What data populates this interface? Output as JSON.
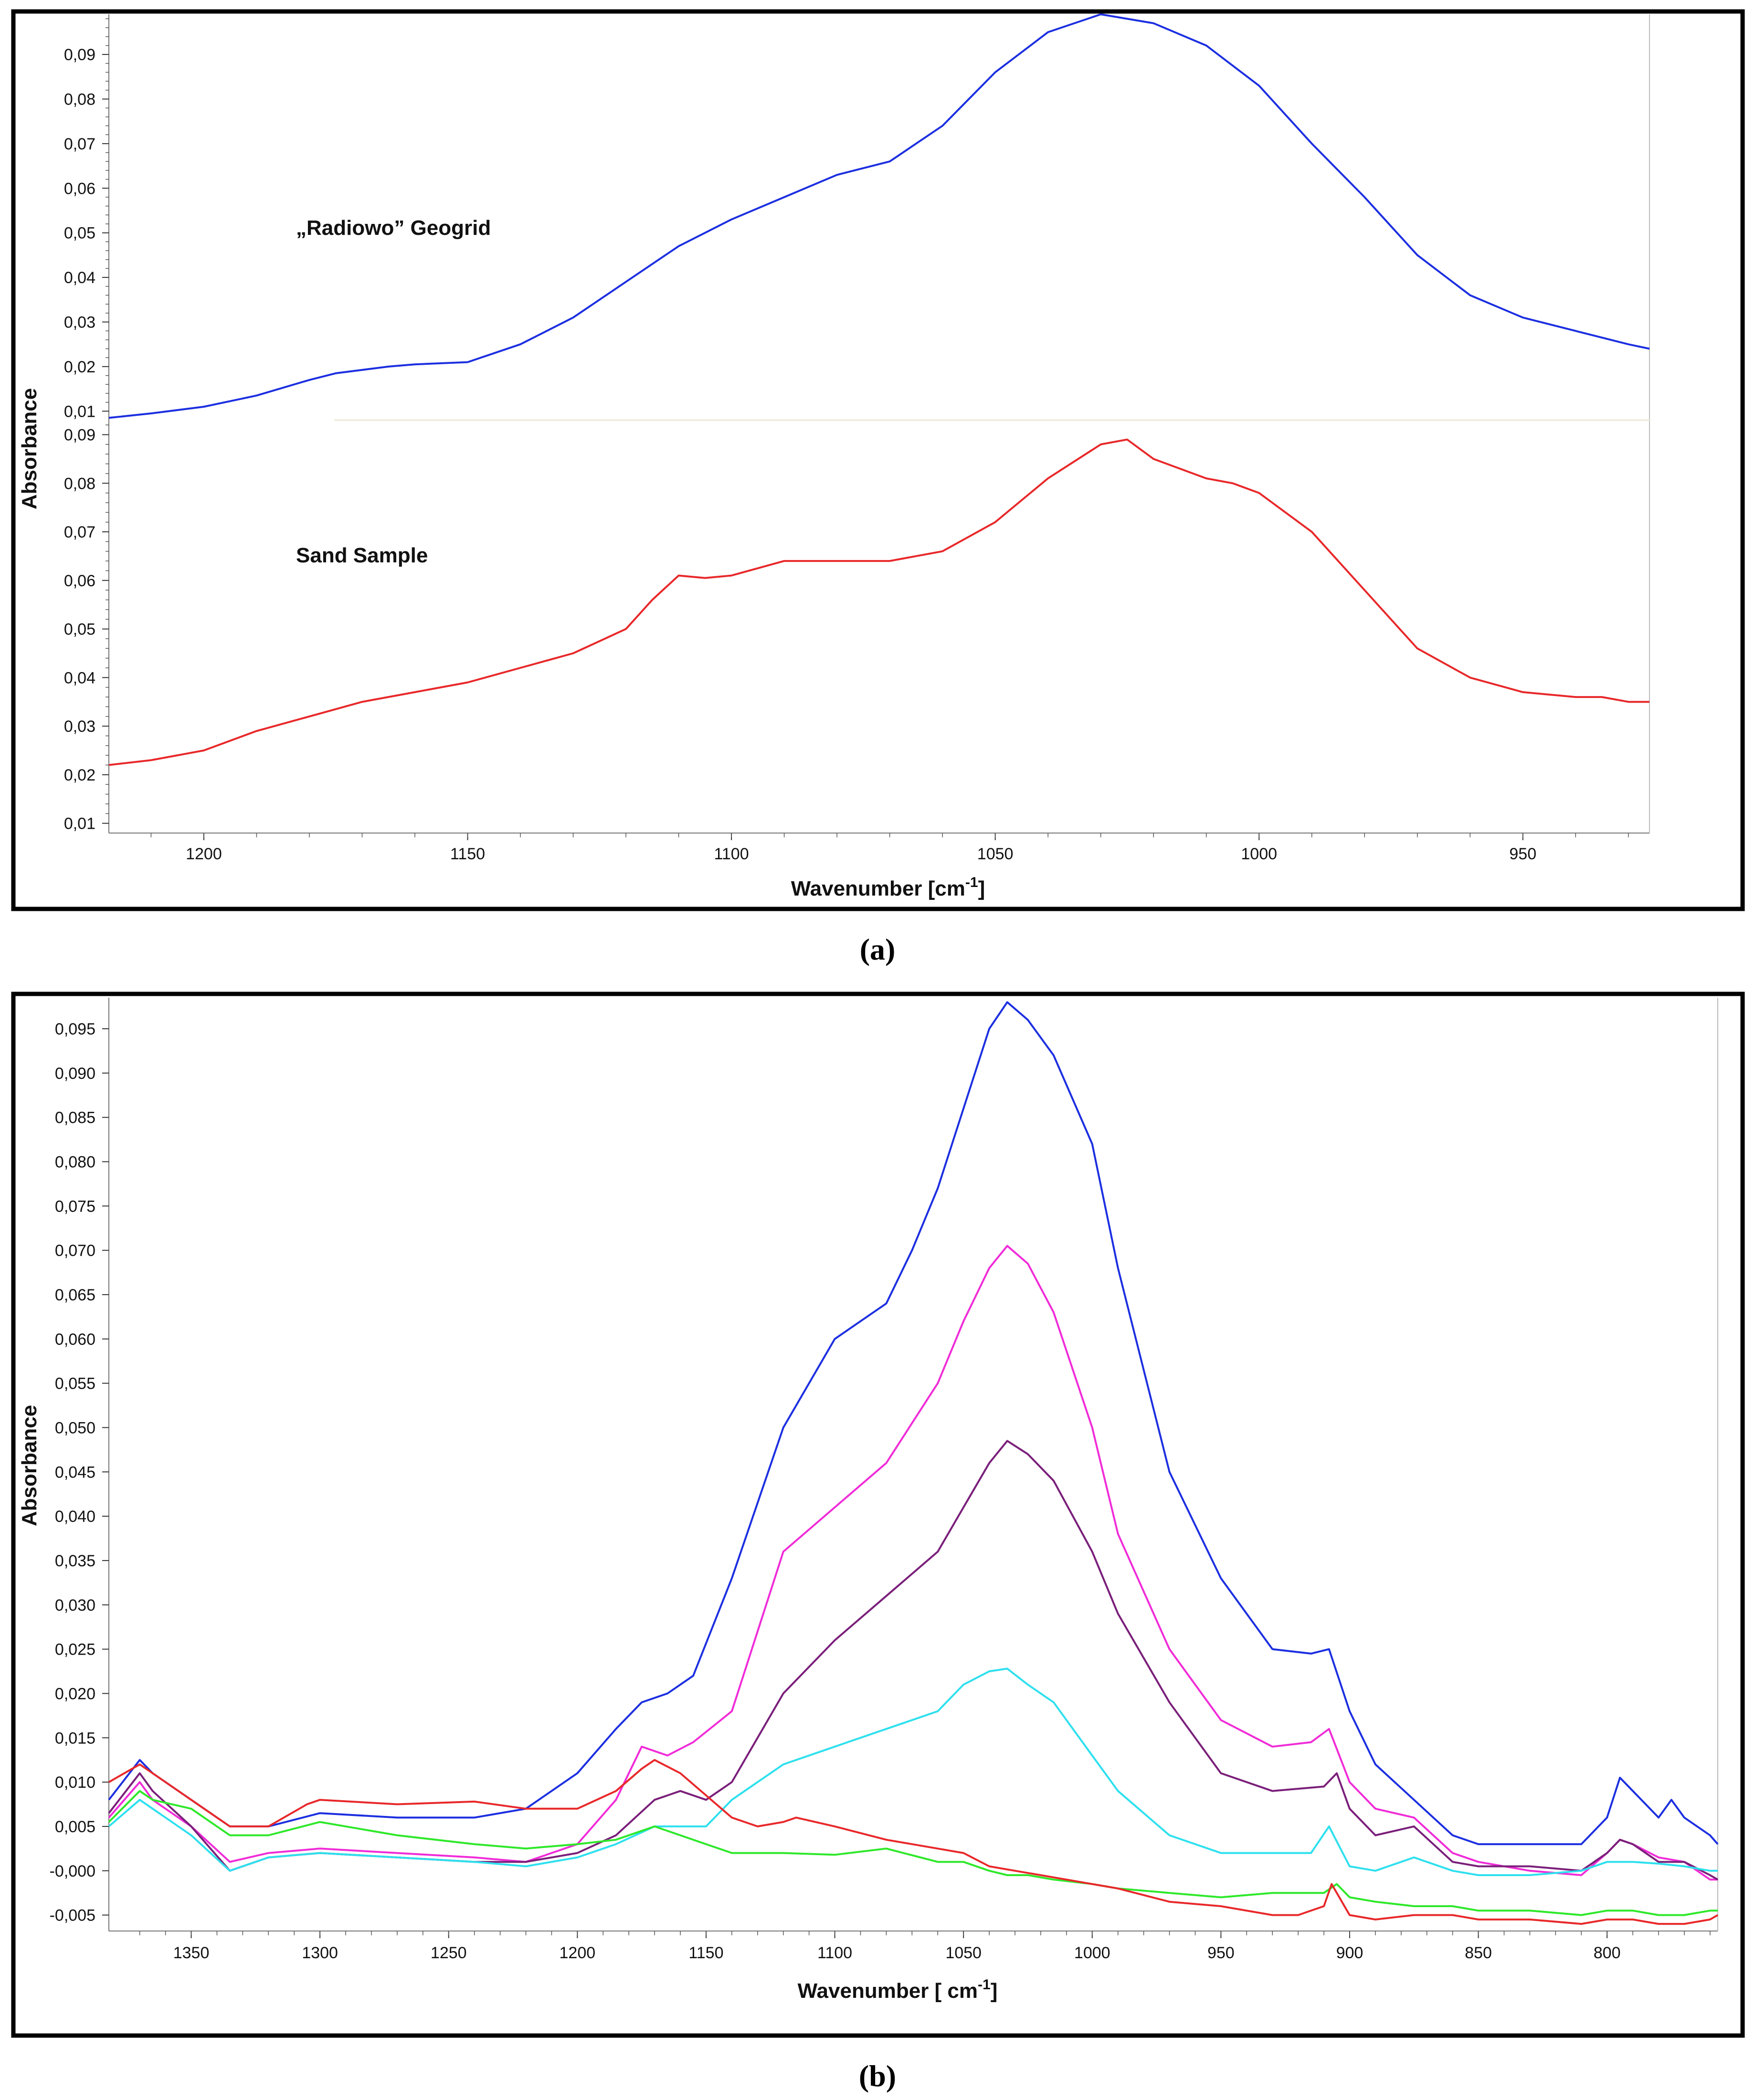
{
  "chart_data": [
    {
      "type": "line",
      "panel_label": "(a)",
      "xlabel": "Wavenumber [cm",
      "xlabel_sup": "-1",
      "xlabel_end": "]",
      "ylabel": "Absorbance",
      "xlim": [
        1218,
        926
      ],
      "xticks": [
        1200,
        1150,
        1100,
        1050,
        1000,
        950
      ],
      "xtick_labels": [
        "1200",
        "1150",
        "1100",
        "1050",
        "1000",
        "950"
      ],
      "subplots": [
        {
          "name": "upper",
          "ylim": [
            0.008,
            0.099
          ],
          "yticks": [
            0.01,
            0.02,
            0.03,
            0.04,
            0.05,
            0.06,
            0.07,
            0.08,
            0.09
          ],
          "ytick_labels": [
            "0,01",
            "0,02",
            "0,03",
            "0,04",
            "0,05",
            "0,06",
            "0,07",
            "0,08",
            "0,09"
          ],
          "annotation": "„Radiowo” Geogrid",
          "series": [
            {
              "name": "„Radiowo” Geogrid",
              "color": "#1c2fe0",
              "x": [
                1218,
                1210,
                1200,
                1190,
                1180,
                1175,
                1165,
                1160,
                1150,
                1140,
                1130,
                1120,
                1110,
                1100,
                1090,
                1080,
                1070,
                1060,
                1050,
                1040,
                1030,
                1020,
                1010,
                1000,
                990,
                980,
                970,
                960,
                950,
                940,
                930,
                926
              ],
              "y": [
                0.0085,
                0.0095,
                0.011,
                0.0135,
                0.017,
                0.0185,
                0.02,
                0.0205,
                0.021,
                0.025,
                0.031,
                0.039,
                0.047,
                0.053,
                0.058,
                0.063,
                0.066,
                0.074,
                0.086,
                0.095,
                0.099,
                0.097,
                0.092,
                0.083,
                0.07,
                0.058,
                0.045,
                0.036,
                0.031,
                0.028,
                0.025,
                0.024
              ]
            }
          ]
        },
        {
          "name": "lower",
          "ylim": [
            0.008,
            0.093
          ],
          "yticks": [
            0.01,
            0.02,
            0.03,
            0.04,
            0.05,
            0.06,
            0.07,
            0.08,
            0.09
          ],
          "ytick_labels": [
            "0,01",
            "0,02",
            "0,03",
            "0,04",
            "0,05",
            "0,06",
            "0,07",
            "0,08",
            "0,09"
          ],
          "annotation": "Sand Sample",
          "series": [
            {
              "name": "Sand Sample",
              "color": "#e8282a",
              "x": [
                1218,
                1210,
                1200,
                1190,
                1180,
                1170,
                1160,
                1150,
                1140,
                1130,
                1120,
                1115,
                1110,
                1105,
                1100,
                1090,
                1080,
                1070,
                1060,
                1050,
                1040,
                1030,
                1025,
                1020,
                1010,
                1005,
                1000,
                990,
                980,
                970,
                960,
                950,
                940,
                935,
                930,
                926
              ],
              "y": [
                0.022,
                0.023,
                0.025,
                0.029,
                0.032,
                0.035,
                0.037,
                0.039,
                0.042,
                0.045,
                0.05,
                0.056,
                0.061,
                0.0605,
                0.061,
                0.064,
                0.064,
                0.064,
                0.066,
                0.072,
                0.081,
                0.088,
                0.089,
                0.085,
                0.081,
                0.08,
                0.078,
                0.07,
                0.058,
                0.046,
                0.04,
                0.037,
                0.036,
                0.036,
                0.035,
                0.035
              ]
            }
          ]
        }
      ]
    },
    {
      "type": "line",
      "panel_label": "(b)",
      "xlabel": "Wavenumber [ cm",
      "xlabel_sup": "-1",
      "xlabel_end": "]",
      "ylabel": "Absorbance",
      "xlim": [
        1382,
        757
      ],
      "ylim": [
        -0.0068,
        0.0985
      ],
      "xticks": [
        1350,
        1300,
        1250,
        1200,
        1150,
        1100,
        1050,
        1000,
        950,
        900,
        850,
        800
      ],
      "xtick_labels": [
        "1350",
        "1300",
        "1250",
        "1200",
        "1150",
        "1100",
        "1050",
        "1000",
        "950",
        "900",
        "850",
        "800"
      ],
      "yticks": [
        -0.005,
        0,
        0.005,
        0.01,
        0.015,
        0.02,
        0.025,
        0.03,
        0.035,
        0.04,
        0.045,
        0.05,
        0.055,
        0.06,
        0.065,
        0.07,
        0.075,
        0.08,
        0.085,
        0.09,
        0.095
      ],
      "ytick_labels": [
        "-0,005",
        "-0,000",
        "0,005",
        "0,010",
        "0,015",
        "0,020",
        "0,025",
        "0,030",
        "0,035",
        "0,040",
        "0,045",
        "0,050",
        "0,055",
        "0,060",
        "0,065",
        "0,070",
        "0,075",
        "0,080",
        "0,085",
        "0,090",
        "0,095"
      ],
      "series": [
        {
          "name": "blue",
          "color": "#1c2fe0",
          "x": [
            1382,
            1370,
            1365,
            1350,
            1335,
            1320,
            1300,
            1270,
            1240,
            1220,
            1200,
            1185,
            1175,
            1165,
            1155,
            1140,
            1120,
            1100,
            1080,
            1070,
            1060,
            1050,
            1040,
            1033,
            1025,
            1015,
            1000,
            990,
            970,
            950,
            930,
            915,
            908,
            900,
            890,
            875,
            860,
            850,
            830,
            810,
            800,
            795,
            790,
            780,
            775,
            770,
            760,
            757
          ],
          "y": [
            0.008,
            0.0125,
            0.011,
            0.008,
            0.005,
            0.005,
            0.0065,
            0.006,
            0.006,
            0.007,
            0.011,
            0.016,
            0.019,
            0.02,
            0.022,
            0.033,
            0.05,
            0.06,
            0.064,
            0.07,
            0.077,
            0.086,
            0.095,
            0.098,
            0.096,
            0.092,
            0.082,
            0.068,
            0.045,
            0.033,
            0.025,
            0.0245,
            0.025,
            0.018,
            0.012,
            0.008,
            0.004,
            0.003,
            0.003,
            0.003,
            0.006,
            0.0105,
            0.009,
            0.006,
            0.008,
            0.006,
            0.004,
            0.003
          ]
        },
        {
          "name": "magenta",
          "color": "#f02cd8",
          "x": [
            1382,
            1370,
            1365,
            1350,
            1335,
            1320,
            1300,
            1270,
            1240,
            1220,
            1200,
            1185,
            1175,
            1165,
            1155,
            1140,
            1120,
            1100,
            1080,
            1060,
            1050,
            1040,
            1033,
            1025,
            1015,
            1000,
            990,
            970,
            950,
            930,
            915,
            908,
            900,
            890,
            875,
            860,
            850,
            830,
            810,
            800,
            795,
            790,
            780,
            770,
            760,
            757
          ],
          "y": [
            0.006,
            0.01,
            0.008,
            0.005,
            0.001,
            0.002,
            0.0025,
            0.002,
            0.0015,
            0.001,
            0.003,
            0.008,
            0.014,
            0.013,
            0.0145,
            0.018,
            0.036,
            0.041,
            0.046,
            0.055,
            0.062,
            0.068,
            0.0705,
            0.0685,
            0.063,
            0.05,
            0.038,
            0.025,
            0.017,
            0.014,
            0.0145,
            0.016,
            0.01,
            0.007,
            0.006,
            0.002,
            0.001,
            0.0,
            -0.0005,
            0.002,
            0.0035,
            0.003,
            0.0015,
            0.001,
            -0.001,
            -0.001
          ]
        },
        {
          "name": "purple",
          "color": "#7a1f7a",
          "x": [
            1382,
            1370,
            1365,
            1350,
            1335,
            1320,
            1300,
            1270,
            1240,
            1220,
            1200,
            1185,
            1170,
            1160,
            1150,
            1140,
            1120,
            1100,
            1080,
            1060,
            1050,
            1040,
            1033,
            1025,
            1015,
            1000,
            990,
            970,
            950,
            930,
            910,
            905,
            900,
            890,
            875,
            860,
            850,
            830,
            810,
            800,
            795,
            790,
            780,
            770,
            760,
            757
          ],
          "y": [
            0.0065,
            0.011,
            0.009,
            0.005,
            0.0,
            0.0015,
            0.002,
            0.0015,
            0.001,
            0.001,
            0.002,
            0.004,
            0.008,
            0.009,
            0.008,
            0.01,
            0.02,
            0.026,
            0.031,
            0.036,
            0.041,
            0.046,
            0.0485,
            0.047,
            0.044,
            0.036,
            0.029,
            0.019,
            0.011,
            0.009,
            0.0095,
            0.011,
            0.007,
            0.004,
            0.005,
            0.001,
            0.0005,
            0.0005,
            0.0,
            0.002,
            0.0035,
            0.003,
            0.001,
            0.001,
            -0.0005,
            -0.001
          ]
        },
        {
          "name": "cyan",
          "color": "#2ee0ee",
          "x": [
            1382,
            1370,
            1365,
            1350,
            1335,
            1320,
            1300,
            1270,
            1240,
            1220,
            1200,
            1185,
            1170,
            1160,
            1150,
            1140,
            1120,
            1100,
            1080,
            1060,
            1050,
            1040,
            1033,
            1025,
            1015,
            1000,
            990,
            970,
            950,
            930,
            915,
            908,
            900,
            890,
            875,
            860,
            850,
            830,
            810,
            800,
            795,
            790,
            780,
            770,
            760,
            757
          ],
          "y": [
            0.005,
            0.008,
            0.007,
            0.004,
            0.0,
            0.0015,
            0.002,
            0.0015,
            0.001,
            0.0005,
            0.0015,
            0.003,
            0.005,
            0.005,
            0.005,
            0.008,
            0.012,
            0.014,
            0.016,
            0.018,
            0.021,
            0.0225,
            0.0228,
            0.021,
            0.019,
            0.013,
            0.009,
            0.004,
            0.002,
            0.002,
            0.002,
            0.005,
            0.0005,
            0.0,
            0.0015,
            0.0,
            -0.0005,
            -0.0005,
            0.0,
            0.001,
            0.001,
            0.001,
            0.0008,
            0.0005,
            0.0,
            0.0
          ]
        },
        {
          "name": "green",
          "color": "#2ee82a",
          "x": [
            1382,
            1370,
            1365,
            1350,
            1335,
            1320,
            1300,
            1270,
            1240,
            1220,
            1200,
            1185,
            1170,
            1160,
            1150,
            1140,
            1120,
            1100,
            1080,
            1060,
            1050,
            1040,
            1033,
            1025,
            1015,
            1000,
            990,
            970,
            950,
            930,
            910,
            905,
            900,
            890,
            875,
            860,
            850,
            830,
            810,
            800,
            790,
            780,
            770,
            760,
            757
          ],
          "y": [
            0.0055,
            0.009,
            0.008,
            0.007,
            0.004,
            0.004,
            0.0055,
            0.004,
            0.003,
            0.0025,
            0.003,
            0.0035,
            0.005,
            0.004,
            0.003,
            0.002,
            0.002,
            0.0018,
            0.0025,
            0.001,
            0.001,
            0.0,
            -0.0005,
            -0.0005,
            -0.001,
            -0.0015,
            -0.002,
            -0.0025,
            -0.003,
            -0.0025,
            -0.0025,
            -0.0015,
            -0.003,
            -0.0035,
            -0.004,
            -0.004,
            -0.0045,
            -0.0045,
            -0.005,
            -0.0045,
            -0.0045,
            -0.005,
            -0.005,
            -0.0045,
            -0.0045
          ]
        },
        {
          "name": "red",
          "color": "#e8282a",
          "x": [
            1382,
            1370,
            1365,
            1350,
            1335,
            1320,
            1305,
            1300,
            1270,
            1240,
            1220,
            1200,
            1185,
            1175,
            1170,
            1160,
            1150,
            1140,
            1130,
            1120,
            1115,
            1100,
            1080,
            1060,
            1050,
            1040,
            1030,
            1020,
            1000,
            990,
            970,
            950,
            930,
            920,
            910,
            907,
            900,
            890,
            875,
            860,
            850,
            830,
            810,
            800,
            790,
            780,
            770,
            760,
            757
          ],
          "y": [
            0.01,
            0.012,
            0.011,
            0.008,
            0.005,
            0.005,
            0.0075,
            0.008,
            0.0075,
            0.0078,
            0.007,
            0.007,
            0.009,
            0.0115,
            0.0125,
            0.011,
            0.0085,
            0.006,
            0.005,
            0.0055,
            0.006,
            0.005,
            0.0035,
            0.0025,
            0.002,
            0.0005,
            0.0,
            -0.0005,
            -0.0015,
            -0.002,
            -0.0035,
            -0.004,
            -0.005,
            -0.005,
            -0.004,
            -0.0015,
            -0.005,
            -0.0055,
            -0.005,
            -0.005,
            -0.0055,
            -0.0055,
            -0.006,
            -0.0055,
            -0.0055,
            -0.006,
            -0.006,
            -0.0055,
            -0.005
          ]
        }
      ]
    }
  ]
}
